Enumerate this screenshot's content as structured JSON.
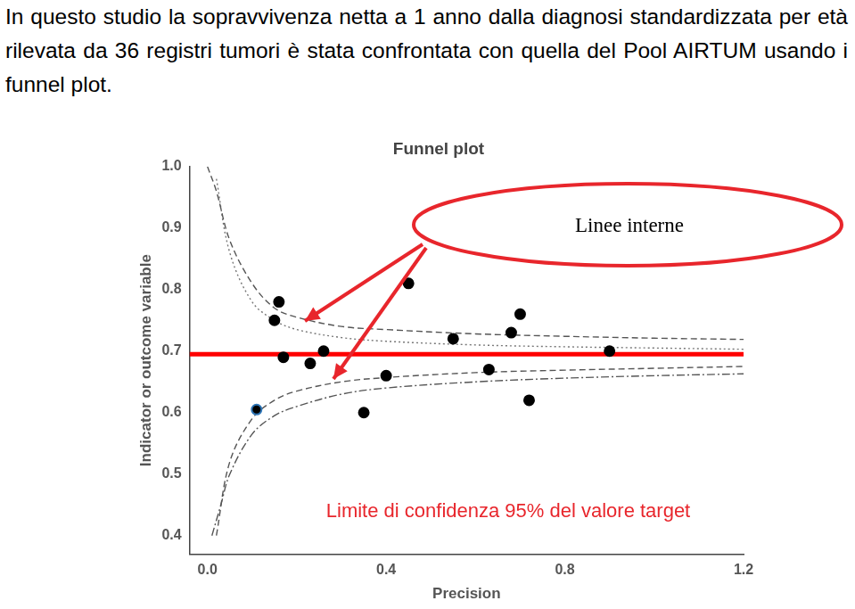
{
  "header": "In questo studio la sopravvivenza netta a 1 anno dalla diagnosi standardizzata per età rilevata da 36 registri tumori è stata confrontata con quella del Pool AIRTUM usando i funnel plot.",
  "chart_data": {
    "type": "scatter",
    "title": "Funnel plot",
    "xlabel": "Precision",
    "ylabel": "Indicator or outcome variable",
    "xlim": [
      -0.04,
      1.2
    ],
    "ylim": [
      0.37,
      1.0
    ],
    "xticks": [
      {
        "value": 0,
        "label": "0.0"
      },
      0.4,
      0.8,
      1.2
    ],
    "yticks": [
      0.4,
      0.5,
      0.6,
      0.7,
      0.8,
      0.9,
      {
        "value": 1,
        "label": "1.0"
      }
    ],
    "grid": false,
    "annotations": [
      "Linee interne",
      "Limite di confidenza 95% del valore target"
    ],
    "series": [
      {
        "type": "scatter",
        "marker": "circle",
        "color": "#000000",
        "colors": [
          "#000000",
          "#000000",
          "#000000",
          "#000000",
          "#000000",
          "#2e75b6",
          "#000000",
          "#000000",
          "#000000",
          "#000000",
          "#000000",
          "#000000",
          "#000000",
          "#000000",
          "#000000"
        ],
        "x": [
          0.16,
          0.15,
          0.17,
          0.23,
          0.26,
          0.11,
          0.35,
          0.4,
          0.45,
          0.55,
          0.63,
          0.68,
          0.7,
          0.72,
          0.9
        ],
        "values": [
          0.78,
          0.75,
          0.69,
          0.68,
          0.7,
          0.605,
          0.6,
          0.66,
          0.81,
          0.72,
          0.67,
          0.73,
          0.76,
          0.62,
          0.7
        ]
      },
      {
        "type": "line",
        "line_style": "dashed",
        "color": "#555555",
        "x": [
          0.0,
          0.02,
          0.05,
          0.1,
          0.15,
          0.2,
          0.3,
          0.4,
          0.6,
          0.8,
          1.0,
          1.2
        ],
        "values": [
          1.0,
          0.96,
          0.88,
          0.81,
          0.77,
          0.755,
          0.74,
          0.735,
          0.728,
          0.724,
          0.721,
          0.719
        ]
      },
      {
        "type": "line",
        "line_style": "dotted",
        "color": "#777777",
        "x": [
          0.02,
          0.05,
          0.1,
          0.15,
          0.2,
          0.3,
          0.4,
          0.6,
          0.8,
          1.0,
          1.2
        ],
        "values": [
          0.98,
          0.86,
          0.78,
          0.75,
          0.735,
          0.722,
          0.716,
          0.71,
          0.707,
          0.705,
          0.703
        ]
      },
      {
        "type": "line",
        "line_style": "dashed",
        "color": "#555555",
        "x": [
          0.02,
          0.05,
          0.1,
          0.15,
          0.2,
          0.3,
          0.4,
          0.6,
          0.8,
          1.0,
          1.2
        ],
        "values": [
          0.4,
          0.52,
          0.59,
          0.62,
          0.635,
          0.65,
          0.657,
          0.665,
          0.669,
          0.672,
          0.675
        ]
      },
      {
        "type": "line",
        "line_style": "dashdot",
        "color": "#555555",
        "x": [
          0.01,
          0.03,
          0.05,
          0.1,
          0.15,
          0.2,
          0.3,
          0.4,
          0.6,
          0.8,
          1.0,
          1.2
        ],
        "values": [
          0.4,
          0.45,
          0.5,
          0.565,
          0.595,
          0.61,
          0.63,
          0.64,
          0.65,
          0.656,
          0.66,
          0.663
        ]
      },
      {
        "type": "line",
        "line_style": "solid",
        "color": "#ff0000",
        "x": [
          -0.04,
          1.2
        ],
        "values": [
          0.695,
          0.695
        ]
      }
    ]
  }
}
